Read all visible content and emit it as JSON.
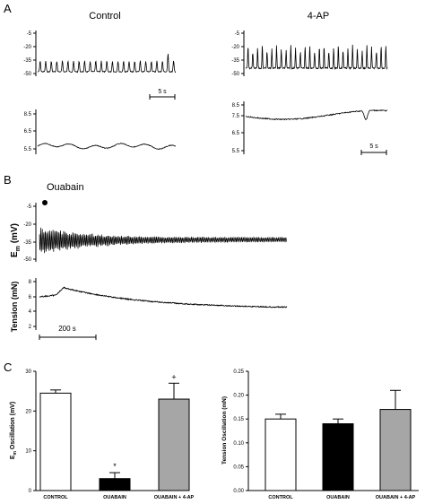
{
  "panels": {
    "a": {
      "letter": "A"
    },
    "b": {
      "letter": "B"
    },
    "c": {
      "letter": "C"
    }
  },
  "traces_a": {
    "control_title": "Control",
    "fourap_title": "4-AP",
    "em_ticks": [
      "-5",
      "-20",
      "-35",
      "-50"
    ],
    "tension_ticks": [
      "8.5",
      "7.5",
      "6.5",
      "5.5"
    ],
    "scale_label": "5 s"
  },
  "traces_b": {
    "marker_label": "Ouabain",
    "em_ylabel_main": "E",
    "em_ylabel_sub": "m",
    "em_ylabel_unit": " (mV)",
    "em_ticks": [
      "-5",
      "-20",
      "-35",
      "-50"
    ],
    "tension_ylabel": "Tension (mN)",
    "tension_ticks": [
      "8",
      "6",
      "4",
      "2"
    ],
    "scale_label": "200 s"
  },
  "colors": {
    "control": "#ffffff",
    "ouabain": "#000000",
    "ouabain_4ap": "#a6a6a6"
  },
  "chart_data": [
    {
      "type": "bar",
      "categories": [
        "CONTROL",
        "OUABAIN",
        "OUABAIN + 4-AP"
      ],
      "values": [
        24.5,
        3.0,
        23.0
      ],
      "errors": [
        0.8,
        1.5,
        4.0
      ],
      "significance": [
        "",
        "*",
        "+"
      ],
      "ylabel_main": "E",
      "ylabel_sub": "m",
      "ylabel_rest": " Oscillation (mV)",
      "ylim": [
        0,
        30
      ],
      "yticks": [
        0,
        10,
        20,
        30
      ]
    },
    {
      "type": "bar",
      "categories": [
        "CONTROL",
        "OUABAIN",
        "OUABAIN + 4-AP"
      ],
      "values": [
        0.15,
        0.14,
        0.17
      ],
      "errors": [
        0.01,
        0.01,
        0.04
      ],
      "significance": [
        "",
        "",
        ""
      ],
      "ylabel": "Tension Oscillation (mN)",
      "ylim": [
        0,
        0.25
      ],
      "yticks": [
        "0.00",
        "0.05",
        "0.10",
        "0.15",
        "0.20",
        "0.25"
      ]
    }
  ]
}
